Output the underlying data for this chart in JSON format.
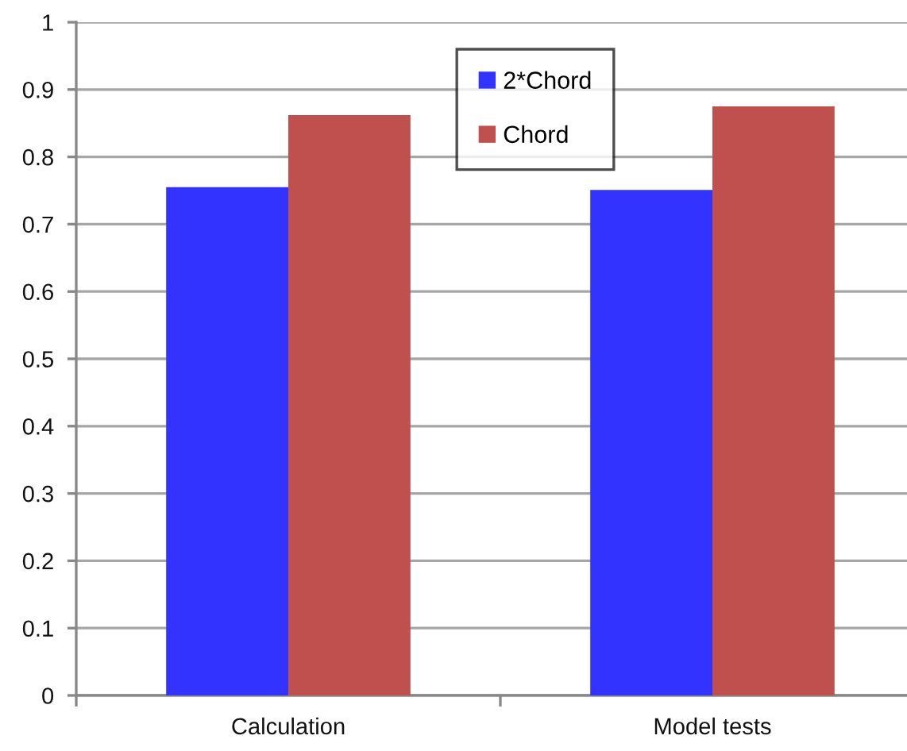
{
  "chart_data": {
    "type": "bar",
    "categories": [
      "Calculation",
      "Model tests"
    ],
    "series": [
      {
        "name": "2*Chord",
        "color": "#3333ff",
        "values": [
          0.755,
          0.751
        ]
      },
      {
        "name": "Chord",
        "color": "#c0504d",
        "values": [
          0.862,
          0.875
        ]
      }
    ],
    "ylim": [
      0,
      1
    ],
    "yticks": [
      0,
      0.1,
      0.2,
      0.3,
      0.4,
      0.5,
      0.6,
      0.7,
      0.8,
      0.9,
      1
    ],
    "grid": "y",
    "legend": "top"
  }
}
